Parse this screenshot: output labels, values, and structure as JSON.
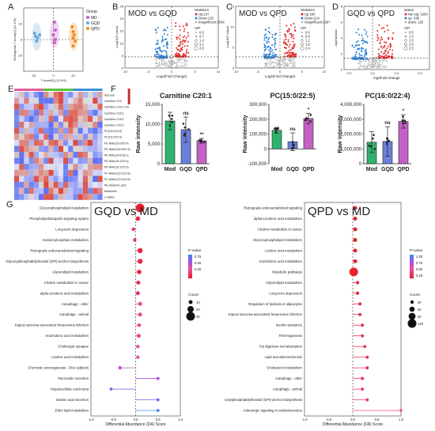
{
  "panel_labels": {
    "a": "A",
    "b": "B",
    "c": "C",
    "d": "D",
    "e": "E",
    "f": "F",
    "g": "G"
  },
  "colors": {
    "MD": "#c25fc6",
    "GQD": "#6aa8d8",
    "QPD": "#f08a1e",
    "up": "#e02b2b",
    "down": "#2a7fd4",
    "ns": "#bdbdbd"
  },
  "chart_data": [
    {
      "id": "A",
      "type": "scatter",
      "xlabel": "T score[1] (11.6%)",
      "ylabel": "Orthogonal T score[1] (12.1%)",
      "xlim": [
        -30,
        30
      ],
      "ylim": [
        -20,
        20
      ],
      "xticks": [
        "-20",
        "0",
        "20"
      ],
      "yticks": [
        "-10",
        "0",
        "10"
      ],
      "legend": {
        "title": "Group",
        "entries": [
          "MD",
          "GQD",
          "QPD"
        ]
      },
      "series": [
        {
          "name": "MD",
          "x": [
            1,
            2,
            0,
            2,
            1
          ],
          "y": [
            11,
            6,
            3,
            0,
            -2
          ]
        },
        {
          "name": "GQD",
          "x": [
            -19,
            -18,
            -16,
            -17,
            -14
          ],
          "y": [
            4,
            2,
            1,
            -1,
            3
          ]
        },
        {
          "name": "QPD",
          "x": [
            19,
            20,
            21,
            20,
            22,
            20
          ],
          "y": [
            8,
            5,
            3,
            1,
            -1,
            -4
          ]
        }
      ]
    },
    {
      "id": "B",
      "type": "scatter",
      "title": "MOD vs GQD",
      "xlabel": "Log2(Fold Change)",
      "ylabel": "-Log10(P-value)",
      "xticks": [
        "-10",
        "-5",
        "0",
        "5",
        "10"
      ],
      "yticks": [
        "0",
        "5",
        "10",
        "15",
        "20",
        "25"
      ],
      "xlim": [
        -10,
        10
      ],
      "ylim": [
        0,
        25
      ],
      "legend": {
        "title": "Statistics",
        "entries": [
          "Up:107",
          "Down:125",
          "Insignificant:3549"
        ],
        "vip_title": "VIP",
        "vip": [
          "0.0",
          "0.7",
          "1.4",
          "2.1",
          "2.8"
        ]
      }
    },
    {
      "id": "C",
      "type": "scatter",
      "title": "MOD vs QPD",
      "xlabel": "Log2(Fold Change)",
      "ylabel": "-Log10(P-value)",
      "xticks": [
        "-10",
        "-5",
        "0",
        "5",
        "10"
      ],
      "yticks": [
        "0",
        "5",
        "10",
        "15"
      ],
      "xlim": [
        -10,
        10
      ],
      "ylim": [
        0,
        15
      ],
      "legend": {
        "title": "Statistics",
        "entries": [
          "Up:260",
          "Down:224",
          "Insignificant:3297"
        ],
        "vip_title": "VIP",
        "vip": [
          "0.0",
          "0.6",
          "1.2",
          "1.8",
          "2.4"
        ]
      }
    },
    {
      "id": "D",
      "type": "scatter",
      "title": "GQD vs QPD",
      "xlabel": "log2Fold change",
      "ylabel": "-log10pvalue",
      "xticks": [
        "-2.5",
        "0.0",
        "2.5",
        "5.0"
      ],
      "yticks": [
        "0",
        "2",
        "4",
        "6",
        "8"
      ],
      "xlim": [
        -3,
        6
      ],
      "ylim": [
        0,
        8
      ],
      "legend": {
        "title": "status",
        "entries": [
          "Not sig: 3260",
          "up: 296",
          "down: 225"
        ],
        "vip_title": "VIP",
        "vip": [
          "0.5",
          "1.0",
          "1.5",
          "2.0",
          "2.5"
        ]
      }
    },
    {
      "id": "E",
      "type": "heatmap",
      "rows": [
        "Glucose",
        "Carnitine C16",
        "Carnitine C16:1-OH",
        "Carnitine C18:1",
        "Carnitine C18:2",
        "Carnitine C20:1",
        "PC(15:0/22:5)",
        "PC(16:0/22:4)",
        "PE-NMe(16:0/20:4)",
        "PE-NMe2(16:0/20:3)",
        "PE-NMe(18:0/18:1)",
        "PE-NMe(18:1/20:4)",
        "PE-NMe(18:1/22:6)",
        "PC-NMe2(22:1/22:6)",
        "PC-NMe2(22:1/22:6)",
        "PE-Glutamic acid",
        "Metformin",
        "L-Valine"
      ],
      "cols": 18
    },
    {
      "id": "F1",
      "type": "bar",
      "title": "Carnitine C20:1",
      "ylabel": "Raw intensity",
      "categories": [
        "Mod",
        "GQD",
        "QPD"
      ],
      "values": [
        10800,
        8600,
        5800
      ],
      "errors": [
        2200,
        3200,
        600
      ],
      "ylim": [
        0,
        15000
      ],
      "yticks": [
        "0",
        "5,000",
        "10,000",
        "15,000"
      ],
      "significance": [
        "",
        "ns",
        "**"
      ],
      "colors": [
        "#2fb26f",
        "#6b7fdb",
        "#c561c6"
      ]
    },
    {
      "id": "F2",
      "type": "bar",
      "title": "PC(15:0/22:5)",
      "ylabel": "Raw intensity",
      "categories": [
        "Mod",
        "GQD",
        "QPD"
      ],
      "values": [
        125000,
        48000,
        205000
      ],
      "errors": [
        20000,
        60000,
        35000
      ],
      "ylim": [
        -100000,
        300000
      ],
      "yticks": [
        "-100,000",
        "0",
        "100,000",
        "200,000",
        "300,000"
      ],
      "significance": [
        "",
        "ns",
        "*"
      ],
      "colors": [
        "#2fb26f",
        "#6b7fdb",
        "#c561c6"
      ]
    },
    {
      "id": "F3",
      "type": "bar",
      "title": "PC(16:0/22:4)",
      "ylabel": "Raw intensity",
      "categories": [
        "Mod",
        "GQD",
        "QPD"
      ],
      "values": [
        1450000,
        1500000,
        2850000
      ],
      "errors": [
        700000,
        1000000,
        450000
      ],
      "ylim": [
        0,
        4000000
      ],
      "yticks": [
        "0",
        "1,000,000",
        "2,000,000",
        "3,000,000",
        "4,000,000"
      ],
      "significance": [
        "",
        "ns",
        "*"
      ],
      "colors": [
        "#2fb26f",
        "#6b7fdb",
        "#c561c6"
      ]
    },
    {
      "id": "G1",
      "type": "scatter",
      "title": "GQD vs MD",
      "xlabel": "Differential Abundance (DA) Score",
      "xlim": [
        -1,
        1
      ],
      "xticks": [
        "-1.0",
        "-0.5",
        "0.0",
        "0.5",
        "1.0"
      ],
      "legend_color": {
        "title": "P-value",
        "ticks": [
          "0.75",
          "0.50",
          "0.25"
        ]
      },
      "legend_size": {
        "title": "Count",
        "ticks": [
          "10",
          "20",
          "30"
        ]
      },
      "rows": [
        {
          "label": "Glycerophospholipid metabolism",
          "score": 0.1,
          "count": 30,
          "p": 0.01
        },
        {
          "label": "Phospholipid/ubiquitin signaling system",
          "score": 0.05,
          "count": 12,
          "p": 0.05
        },
        {
          "label": "Long-term depression",
          "score": -0.05,
          "count": 8,
          "p": 0.1
        },
        {
          "label": "Inositol phosphate metabolism",
          "score": -0.02,
          "count": 8,
          "p": 0.1
        },
        {
          "label": "Retrograde endocannabinoid signaling",
          "score": 0.1,
          "count": 15,
          "p": 0.05
        },
        {
          "label": "Glycosylphosphatidylinositol (GPI)-anchor biosynthesis",
          "score": 0.1,
          "count": 15,
          "p": 0.08
        },
        {
          "label": "Glycerolipid metabolism",
          "score": 0.08,
          "count": 12,
          "p": 0.05
        },
        {
          "label": "Choline metabolism in cancer",
          "score": 0.06,
          "count": 10,
          "p": 0.08
        },
        {
          "label": "alpha-Linolenic acid metabolism",
          "score": 0.05,
          "count": 10,
          "p": 0.1
        },
        {
          "label": "Autophagy - other",
          "score": 0.1,
          "count": 10,
          "p": 0.2
        },
        {
          "label": "Autophagy - animal",
          "score": 0.1,
          "count": 10,
          "p": 0.2
        },
        {
          "label": "Kaposi sarcoma-associated herpesvirus infection",
          "score": 0.08,
          "count": 8,
          "p": 0.2
        },
        {
          "label": "Arachidonic acid metabolism",
          "score": 0.07,
          "count": 10,
          "p": 0.2
        },
        {
          "label": "Cholinergic synapse",
          "score": 0.05,
          "count": 8,
          "p": 0.3
        },
        {
          "label": "Linoleic acid metabolism",
          "score": 0.05,
          "count": 8,
          "p": 0.3
        },
        {
          "label": "Chemical carcinogenesis - DNA adducts",
          "score": -0.35,
          "count": 8,
          "p": 0.4
        },
        {
          "label": "Pancreatic secretion",
          "score": 0.5,
          "count": 6,
          "p": 0.5
        },
        {
          "label": "Hepatocellular carcinoma",
          "score": -0.55,
          "count": 6,
          "p": 0.6
        },
        {
          "label": "Gastric acid secretion",
          "score": 0.5,
          "count": 6,
          "p": 0.7
        },
        {
          "label": "Ether lipid metabolism",
          "score": 0.5,
          "count": 6,
          "p": 0.9
        }
      ]
    },
    {
      "id": "G2",
      "type": "scatter",
      "title": "QPD vs MD",
      "xlabel": "Differential Abundance (DA) Score",
      "xlim": [
        -1,
        1
      ],
      "xticks": [
        "-1.0",
        "-0.5",
        "0.0",
        "0.5",
        "1.0"
      ],
      "legend_color": {
        "title": "P-value",
        "ticks": [
          "1.00",
          "0.75",
          "0.50",
          "0.25"
        ]
      },
      "legend_size": {
        "title": "Count",
        "ticks": [
          "30",
          "60",
          "90",
          "120"
        ]
      },
      "rows": [
        {
          "label": "Retrograde endocannabinoid signaling",
          "score": 0.05,
          "count": 40,
          "p": 0.01
        },
        {
          "label": "alpha-Linolenic acid metabolism",
          "score": 0.05,
          "count": 40,
          "p": 0.01
        },
        {
          "label": "Choline metabolism in cancer",
          "score": 0.05,
          "count": 40,
          "p": 0.01
        },
        {
          "label": "Glycerophospholipid metabolism",
          "score": 0.05,
          "count": 40,
          "p": 0.01
        },
        {
          "label": "Linoleic acid metabolism",
          "score": 0.05,
          "count": 40,
          "p": 0.02
        },
        {
          "label": "Arachidonic acid metabolism",
          "score": 0.05,
          "count": 40,
          "p": 0.02
        },
        {
          "label": "Metabolic pathways",
          "score": 0.02,
          "count": 120,
          "p": 0.02
        },
        {
          "label": "Glycerolipid metabolism",
          "score": 0.1,
          "count": 30,
          "p": 0.05
        },
        {
          "label": "Long-term depression",
          "score": 0.1,
          "count": 30,
          "p": 0.05
        },
        {
          "label": "Regulation of lipolysis in adipocytes",
          "score": 0.15,
          "count": 25,
          "p": 0.05
        },
        {
          "label": "Kaposi sarcoma-associated herpesvirus infection",
          "score": 0.15,
          "count": 25,
          "p": 0.06
        },
        {
          "label": "Insulin resistance",
          "score": 0.2,
          "count": 25,
          "p": 0.08
        },
        {
          "label": "Thermogenesis",
          "score": 0.2,
          "count": 25,
          "p": 0.08
        },
        {
          "label": "Fat digestion and absorption",
          "score": 0.25,
          "count": 25,
          "p": 0.1
        },
        {
          "label": "Lipid and atherosclerosis",
          "score": 0.3,
          "count": 25,
          "p": 0.1
        },
        {
          "label": "Cholesterol metabolism",
          "score": 0.3,
          "count": 25,
          "p": 0.1
        },
        {
          "label": "Autophagy - other",
          "score": 0.2,
          "count": 25,
          "p": 0.12
        },
        {
          "label": "Autophagy - animal",
          "score": 0.2,
          "count": 25,
          "p": 0.12
        },
        {
          "label": "cosylphosphatidylinositol (GPI)-anchor biosynthesis",
          "score": 0.3,
          "count": 25,
          "p": 0.15
        },
        {
          "label": "Adrenergic signaling in cardiomyocytes",
          "score": 1.0,
          "count": 20,
          "p": 0.2
        }
      ]
    }
  ]
}
